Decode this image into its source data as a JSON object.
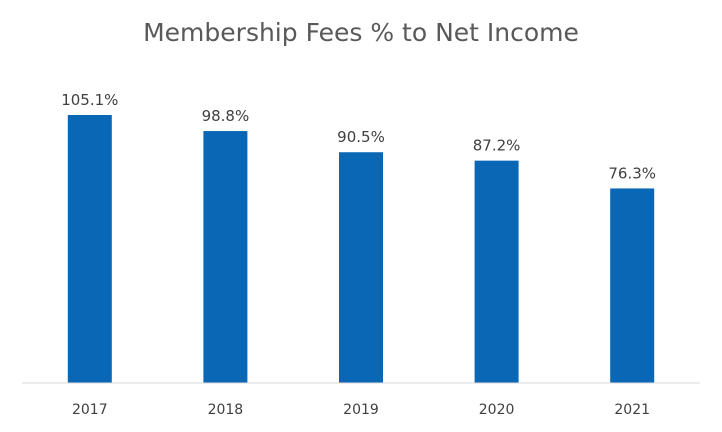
{
  "chart_data": {
    "type": "bar",
    "title": "Membership Fees % to Net Income",
    "xlabel": "",
    "ylabel": "",
    "categories": [
      "2017",
      "2018",
      "2019",
      "2020",
      "2021"
    ],
    "values": [
      105.1,
      98.8,
      90.5,
      87.2,
      76.3
    ],
    "data_labels": [
      "105.1%",
      "98.8%",
      "90.5%",
      "87.2%",
      "76.3%"
    ],
    "ylim": [
      0,
      120
    ],
    "grid": false,
    "legend": "none",
    "bar_color": "#0a67b6",
    "axis_color": "#d9d9d9"
  }
}
